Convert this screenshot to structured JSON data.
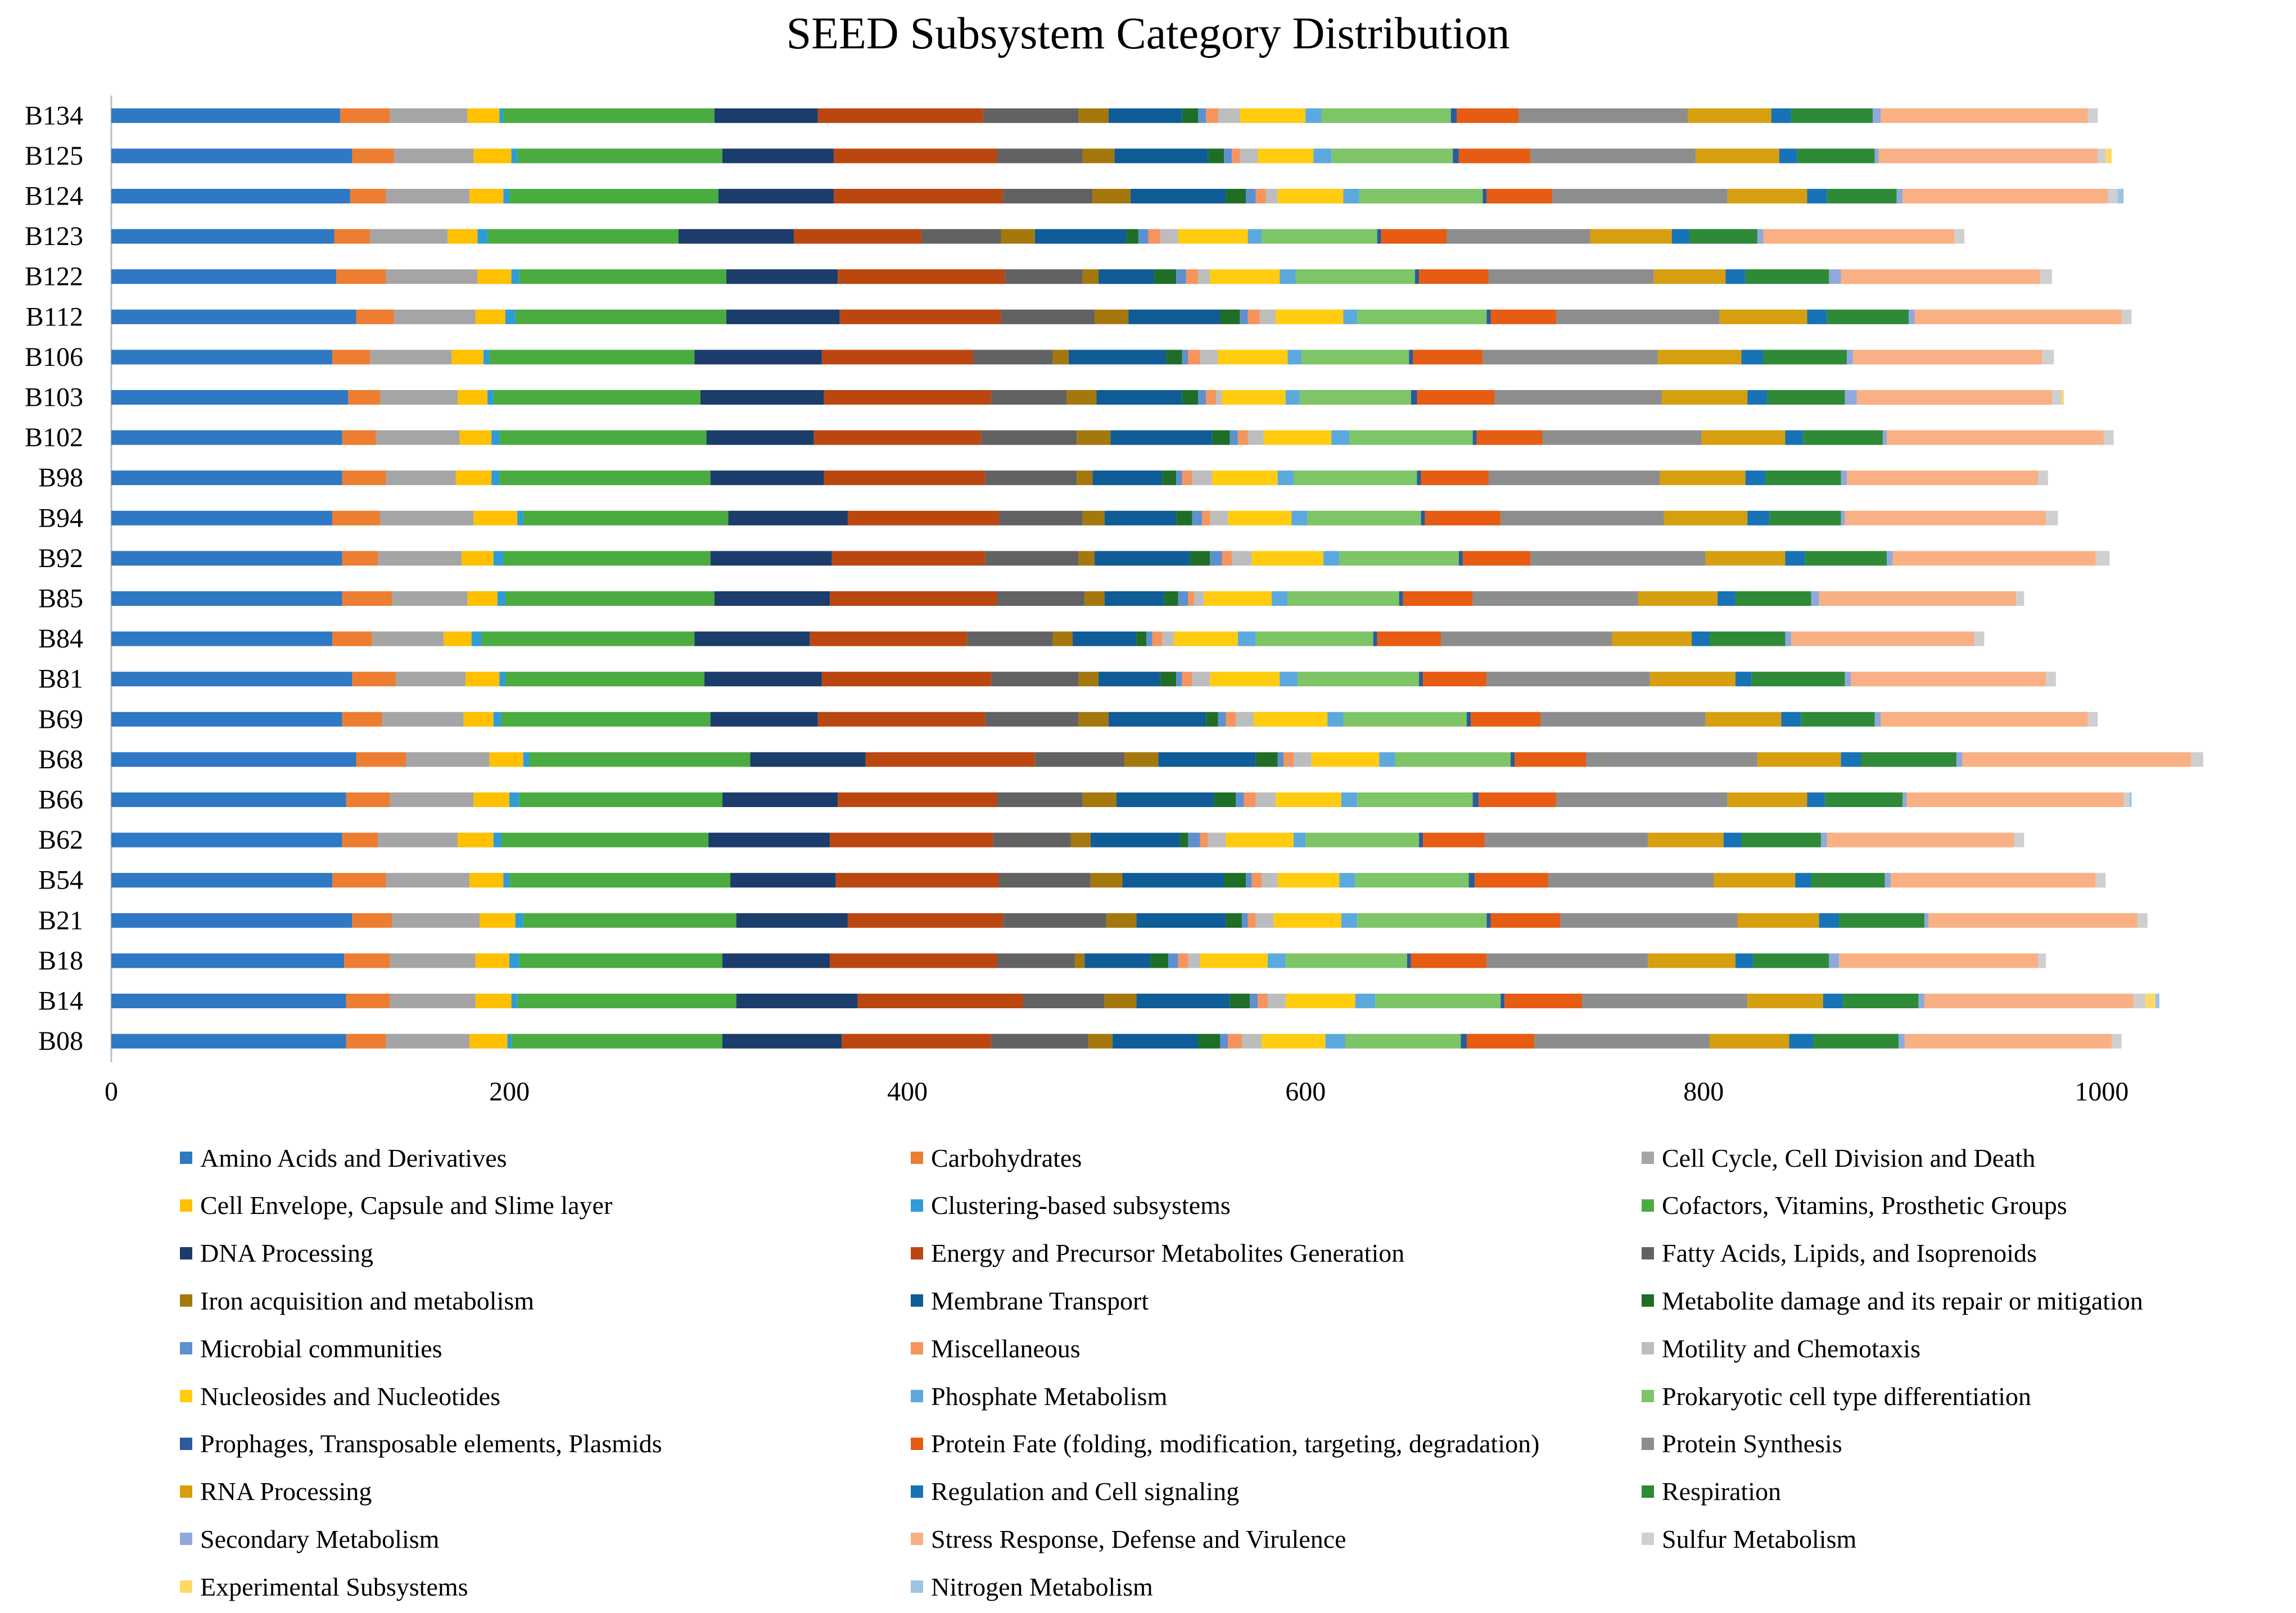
{
  "chart_data": {
    "type": "bar",
    "orientation": "horizontal",
    "stacked": true,
    "title": "SEED Subsystem Category Distribution",
    "xlabel": "",
    "ylabel": "",
    "xlim": [
      0,
      1040
    ],
    "xticks": [
      0,
      200,
      400,
      600,
      800,
      1000
    ],
    "grid": false,
    "legend_position": "bottom",
    "categories": [
      "B134",
      "B125",
      "B124",
      "B123",
      "B122",
      "B112",
      "B106",
      "B103",
      "B102",
      "B98",
      "B94",
      "B92",
      "B85",
      "B84",
      "B81",
      "B69",
      "B68",
      "B66",
      "B62",
      "B54",
      "B21",
      "B18",
      "B14",
      "B08"
    ],
    "series": [
      {
        "name": "Amino Acids and Derivatives",
        "color": "#2f78c4",
        "values": [
          115,
          121,
          120,
          112,
          113,
          123,
          111,
          119,
          116,
          116,
          111,
          116,
          116,
          111,
          121,
          116,
          123,
          118,
          116,
          111,
          121,
          117,
          118,
          118
        ]
      },
      {
        "name": "Carbohydrates",
        "color": "#ed7d31",
        "values": [
          25,
          21,
          18,
          18,
          25,
          19,
          19,
          16,
          17,
          22,
          24,
          18,
          25,
          20,
          22,
          20,
          25,
          22,
          18,
          27,
          20,
          23,
          22,
          20
        ]
      },
      {
        "name": "Cell Cycle, Cell Division and Death",
        "color": "#a5a5a5",
        "values": [
          39,
          40,
          42,
          39,
          46,
          41,
          41,
          39,
          42,
          35,
          47,
          42,
          38,
          36,
          35,
          41,
          42,
          42,
          40,
          42,
          44,
          43,
          43,
          42
        ]
      },
      {
        "name": "Cell Envelope, Capsule and Slime layer",
        "color": "#ffc000",
        "values": [
          16,
          19,
          17,
          15,
          17,
          15,
          16,
          15,
          16,
          18,
          22,
          16,
          15,
          14,
          17,
          15,
          17,
          18,
          18,
          17,
          18,
          17,
          18,
          19
        ]
      },
      {
        "name": "Clustering-based subsystems",
        "color": "#2e9cd8",
        "values": [
          2,
          3,
          3,
          5,
          4,
          5,
          3,
          3,
          4,
          4,
          3,
          5,
          4,
          5,
          3,
          4,
          3,
          5,
          4,
          3,
          4,
          5,
          3,
          2
        ]
      },
      {
        "name": "Cofactors, Vitamins, Prosthetic Groups",
        "color": "#4aab41",
        "values": [
          106,
          103,
          105,
          96,
          104,
          106,
          103,
          104,
          104,
          106,
          103,
          104,
          105,
          107,
          100,
          105,
          111,
          102,
          104,
          111,
          107,
          102,
          110,
          106
        ]
      },
      {
        "name": "DNA Processing",
        "color": "#1c3d6b",
        "values": [
          52,
          56,
          58,
          58,
          56,
          57,
          64,
          62,
          54,
          57,
          60,
          61,
          58,
          58,
          59,
          54,
          58,
          58,
          61,
          53,
          56,
          54,
          61,
          60
        ]
      },
      {
        "name": "Energy and Precursor Metabolites Generation",
        "color": "#bb4710",
        "values": [
          83,
          82,
          85,
          64,
          84,
          81,
          76,
          84,
          84,
          81,
          76,
          77,
          84,
          79,
          85,
          84,
          85,
          80,
          82,
          82,
          78,
          84,
          83,
          75
        ]
      },
      {
        "name": "Fatty Acids, Lipids, and Isoprenoids",
        "color": "#626262",
        "values": [
          48,
          43,
          45,
          40,
          39,
          47,
          40,
          38,
          48,
          46,
          42,
          47,
          44,
          43,
          44,
          47,
          45,
          43,
          39,
          46,
          52,
          39,
          41,
          49
        ]
      },
      {
        "name": "Iron acquisition and metabolism",
        "color": "#a5780e",
        "values": [
          15,
          16,
          19,
          17,
          8,
          17,
          8,
          15,
          17,
          8,
          11,
          8,
          10,
          10,
          10,
          15,
          17,
          17,
          10,
          16,
          15,
          5,
          16,
          12
        ]
      },
      {
        "name": "Membrane Transport",
        "color": "#0f5c96",
        "values": [
          37,
          47,
          48,
          46,
          28,
          46,
          49,
          43,
          51,
          35,
          36,
          48,
          30,
          32,
          31,
          49,
          49,
          49,
          45,
          51,
          45,
          33,
          47,
          43
        ]
      },
      {
        "name": "Metabolite damage and its repair or mitigation",
        "color": "#1e6e27",
        "values": [
          8,
          8,
          10,
          6,
          11,
          10,
          8,
          8,
          9,
          7,
          8,
          10,
          7,
          5,
          8,
          6,
          11,
          11,
          4,
          11,
          8,
          9,
          10,
          11
        ]
      },
      {
        "name": "Microbial communities",
        "color": "#5e90cf",
        "values": [
          4,
          4,
          5,
          5,
          5,
          4,
          3,
          4,
          4,
          3,
          5,
          6,
          5,
          3,
          3,
          4,
          3,
          4,
          6,
          3,
          3,
          5,
          4,
          4
        ]
      },
      {
        "name": "Miscellaneous",
        "color": "#f5945c",
        "values": [
          6,
          4,
          5,
          6,
          6,
          6,
          6,
          5,
          5,
          5,
          4,
          5,
          3,
          5,
          5,
          5,
          5,
          6,
          4,
          5,
          4,
          5,
          5,
          7
        ]
      },
      {
        "name": "Motility and Chemotaxis",
        "color": "#bdbdbd",
        "values": [
          11,
          9,
          6,
          9,
          6,
          8,
          9,
          3,
          8,
          10,
          9,
          10,
          5,
          6,
          9,
          9,
          9,
          10,
          9,
          8,
          9,
          6,
          9,
          10
        ]
      },
      {
        "name": "Nucleosides and Nucleotides",
        "color": "#ffcc10",
        "values": [
          33,
          28,
          33,
          35,
          35,
          34,
          35,
          32,
          34,
          33,
          32,
          36,
          34,
          32,
          35,
          37,
          34,
          33,
          34,
          31,
          34,
          34,
          35,
          32
        ]
      },
      {
        "name": "Phosphate Metabolism",
        "color": "#5ba9df",
        "values": [
          8,
          9,
          8,
          7,
          8,
          7,
          7,
          7,
          9,
          8,
          8,
          8,
          8,
          9,
          9,
          8,
          8,
          8,
          6,
          8,
          8,
          9,
          10,
          10
        ]
      },
      {
        "name": "Prokaryotic cell type differentiation",
        "color": "#7dc566",
        "values": [
          65,
          61,
          62,
          58,
          60,
          65,
          54,
          56,
          62,
          62,
          57,
          60,
          56,
          59,
          61,
          62,
          58,
          58,
          57,
          57,
          65,
          61,
          63,
          58
        ]
      },
      {
        "name": "Prophages, Transposable elements, Plasmids",
        "color": "#2b5b9a",
        "values": [
          3,
          3,
          2,
          2,
          2,
          2,
          2,
          3,
          2,
          2,
          2,
          2,
          2,
          2,
          2,
          2,
          2,
          3,
          2,
          3,
          2,
          2,
          2,
          3
        ]
      },
      {
        "name": "Protein Fate (folding, modification, targeting, degradation)",
        "color": "#e55c12",
        "values": [
          31,
          36,
          33,
          33,
          35,
          33,
          35,
          39,
          33,
          34,
          38,
          34,
          35,
          32,
          32,
          35,
          36,
          39,
          31,
          37,
          35,
          38,
          39,
          34
        ]
      },
      {
        "name": "Protein Synthesis",
        "color": "#8d8d8d",
        "values": [
          85,
          83,
          88,
          72,
          83,
          82,
          88,
          84,
          80,
          86,
          82,
          88,
          83,
          86,
          82,
          83,
          86,
          86,
          82,
          83,
          89,
          81,
          83,
          88
        ]
      },
      {
        "name": "RNA Processing",
        "color": "#d69f0f",
        "values": [
          42,
          42,
          40,
          41,
          36,
          44,
          42,
          43,
          42,
          43,
          42,
          40,
          40,
          40,
          43,
          38,
          42,
          40,
          38,
          41,
          41,
          44,
          38,
          40
        ]
      },
      {
        "name": "Regulation and Cell signaling",
        "color": "#1773b5",
        "values": [
          10,
          9,
          10,
          9,
          10,
          10,
          11,
          10,
          9,
          10,
          11,
          10,
          9,
          9,
          8,
          10,
          10,
          9,
          9,
          8,
          10,
          9,
          10,
          12
        ]
      },
      {
        "name": "Respiration",
        "color": "#2e8a37",
        "values": [
          41,
          39,
          35,
          34,
          42,
          41,
          42,
          39,
          40,
          38,
          36,
          41,
          38,
          38,
          47,
          37,
          48,
          39,
          40,
          37,
          43,
          38,
          38,
          43
        ]
      },
      {
        "name": "Secondary Metabolism",
        "color": "#8fa9dc",
        "values": [
          4,
          2,
          3,
          3,
          6,
          3,
          3,
          6,
          2,
          3,
          2,
          3,
          4,
          3,
          3,
          3,
          3,
          2,
          3,
          3,
          2,
          5,
          3,
          3
        ]
      },
      {
        "name": "Stress Response, Defense and Virulence",
        "color": "#f9b084",
        "values": [
          104,
          110,
          103,
          96,
          100,
          104,
          95,
          98,
          109,
          96,
          101,
          102,
          99,
          92,
          98,
          104,
          115,
          109,
          94,
          103,
          105,
          100,
          105,
          104
        ]
      },
      {
        "name": "Sulfur Metabolism",
        "color": "#cfcfcf",
        "values": [
          5,
          4,
          5,
          5,
          6,
          5,
          6,
          5,
          5,
          5,
          6,
          7,
          4,
          5,
          5,
          5,
          6,
          3,
          5,
          5,
          5,
          4,
          6,
          5
        ]
      },
      {
        "name": "Experimental Subsystems",
        "color": "#ffd966",
        "values": [
          0,
          3,
          0,
          0,
          0,
          0,
          0,
          1,
          0,
          0,
          0,
          0,
          0,
          0,
          0,
          0,
          0,
          0,
          0,
          0,
          0,
          0,
          5,
          0
        ]
      },
      {
        "name": "Nitrogen Metabolism",
        "color": "#9dc3e6",
        "values": [
          0,
          0,
          3,
          0,
          0,
          0,
          0,
          0,
          0,
          0,
          0,
          0,
          0,
          0,
          0,
          0,
          0,
          1,
          0,
          0,
          0,
          0,
          2,
          0
        ]
      }
    ]
  }
}
